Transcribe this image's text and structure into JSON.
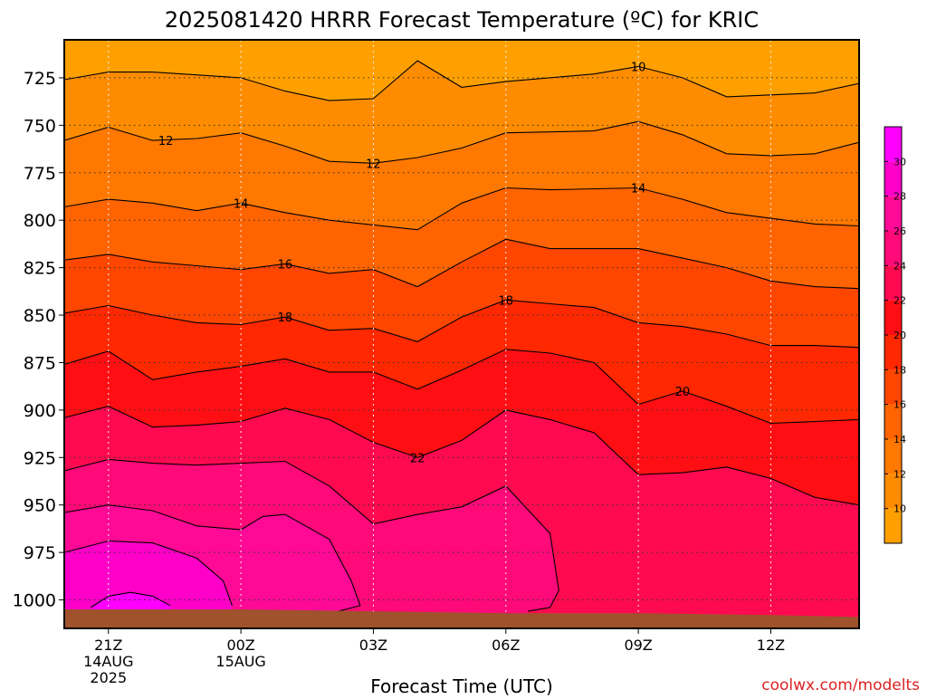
{
  "chart_data": {
    "type": "filled-contour",
    "title": "2025081420 HRRR Forecast Temperature (ºC) for KRIC",
    "xlabel": "Forecast Time (UTC)",
    "ylabel": "",
    "credit": "coolwx.com/modelts",
    "x_unit": "hours after 2025-08-14 20Z",
    "xlim": [
      0,
      18
    ],
    "ylim": [
      705,
      1015
    ],
    "y_scale": "linear-inverted",
    "y_ticks": [
      725,
      750,
      775,
      800,
      825,
      850,
      875,
      900,
      925,
      950,
      975,
      1000
    ],
    "x_ticks": [
      {
        "x": 1,
        "label": "21Z",
        "sub": [
          "14AUG",
          "2025"
        ]
      },
      {
        "x": 4,
        "label": "00Z",
        "sub": [
          "15AUG"
        ]
      },
      {
        "x": 7,
        "label": "03Z",
        "sub": []
      },
      {
        "x": 10,
        "label": "06Z",
        "sub": []
      },
      {
        "x": 13,
        "label": "09Z",
        "sub": []
      },
      {
        "x": 16,
        "label": "12Z",
        "sub": []
      }
    ],
    "grid": true,
    "surface_pressure": [
      [
        0,
        1005
      ],
      [
        4,
        1005
      ],
      [
        7,
        1006
      ],
      [
        10,
        1007
      ],
      [
        13,
        1007
      ],
      [
        16,
        1008
      ],
      [
        18,
        1009
      ]
    ],
    "contours": [
      {
        "level": 10,
        "points": [
          [
            0,
            726
          ],
          [
            1,
            722
          ],
          [
            2,
            722
          ],
          [
            4,
            725
          ],
          [
            5,
            732
          ],
          [
            6,
            737
          ],
          [
            7,
            736
          ],
          [
            8,
            716
          ],
          [
            9,
            730
          ],
          [
            10,
            727
          ],
          [
            12,
            723
          ],
          [
            13,
            719
          ],
          [
            14,
            725
          ],
          [
            15,
            735
          ],
          [
            16,
            734
          ],
          [
            17,
            733
          ],
          [
            18,
            728
          ]
        ]
      },
      {
        "level": 12,
        "points": [
          [
            0,
            758
          ],
          [
            1,
            751
          ],
          [
            2,
            758
          ],
          [
            3,
            757
          ],
          [
            4,
            754
          ],
          [
            5,
            761
          ],
          [
            6,
            769
          ],
          [
            7,
            770
          ],
          [
            8,
            767
          ],
          [
            9,
            762
          ],
          [
            10,
            754
          ],
          [
            12,
            753
          ],
          [
            13,
            748
          ],
          [
            14,
            755
          ],
          [
            15,
            765
          ],
          [
            16,
            766
          ],
          [
            17,
            765
          ],
          [
            18,
            759
          ]
        ]
      },
      {
        "level": 14,
        "points": [
          [
            0,
            793
          ],
          [
            1,
            789
          ],
          [
            2,
            791
          ],
          [
            3,
            795
          ],
          [
            4,
            791
          ],
          [
            5,
            796
          ],
          [
            6,
            800
          ],
          [
            8,
            805
          ],
          [
            9,
            791
          ],
          [
            10,
            783
          ],
          [
            11,
            784
          ],
          [
            13,
            783
          ],
          [
            14,
            789
          ],
          [
            15,
            796
          ],
          [
            16,
            799
          ],
          [
            17,
            802
          ],
          [
            18,
            803
          ]
        ]
      },
      {
        "level": 16,
        "points": [
          [
            0,
            821
          ],
          [
            1,
            818
          ],
          [
            2,
            822
          ],
          [
            3,
            824
          ],
          [
            4,
            826
          ],
          [
            5,
            823
          ],
          [
            6,
            828
          ],
          [
            7,
            826
          ],
          [
            8,
            835
          ],
          [
            9,
            822
          ],
          [
            10,
            810
          ],
          [
            11,
            815
          ],
          [
            13,
            815
          ],
          [
            14,
            820
          ],
          [
            15,
            825
          ],
          [
            16,
            832
          ],
          [
            17,
            835
          ],
          [
            18,
            836
          ]
        ]
      },
      {
        "level": 18,
        "points": [
          [
            0,
            849
          ],
          [
            1,
            845
          ],
          [
            2,
            850
          ],
          [
            3,
            854
          ],
          [
            4,
            855
          ],
          [
            5,
            851
          ],
          [
            6,
            858
          ],
          [
            7,
            857
          ],
          [
            8,
            864
          ],
          [
            9,
            851
          ],
          [
            10,
            842
          ],
          [
            11,
            844
          ],
          [
            12,
            846
          ],
          [
            13,
            854
          ],
          [
            14,
            856
          ],
          [
            15,
            860
          ],
          [
            16,
            866
          ],
          [
            17,
            866
          ],
          [
            18,
            867
          ]
        ]
      },
      {
        "level": 20,
        "points": [
          [
            0,
            876
          ],
          [
            1,
            869
          ],
          [
            2,
            884
          ],
          [
            3,
            880
          ],
          [
            4,
            877
          ],
          [
            5,
            873
          ],
          [
            6,
            880
          ],
          [
            7,
            880
          ],
          [
            8,
            889
          ],
          [
            9,
            879
          ],
          [
            10,
            868
          ],
          [
            11,
            870
          ],
          [
            12,
            875
          ],
          [
            13,
            897
          ],
          [
            14,
            890
          ],
          [
            15,
            898
          ],
          [
            16,
            907
          ],
          [
            17,
            906
          ],
          [
            18,
            905
          ]
        ]
      },
      {
        "level": 22,
        "points": [
          [
            0,
            904
          ],
          [
            1,
            898
          ],
          [
            2,
            909
          ],
          [
            3,
            908
          ],
          [
            4,
            906
          ],
          [
            5,
            899
          ],
          [
            6,
            905
          ],
          [
            7,
            917
          ],
          [
            8,
            925
          ],
          [
            9,
            916
          ],
          [
            10,
            900
          ],
          [
            11,
            905
          ],
          [
            12,
            912
          ],
          [
            13,
            934
          ],
          [
            14,
            933
          ],
          [
            15,
            930
          ],
          [
            16,
            936
          ],
          [
            17,
            946
          ],
          [
            18,
            950
          ]
        ]
      },
      {
        "level": 24,
        "points": [
          [
            0,
            932
          ],
          [
            1,
            926
          ],
          [
            2,
            928
          ],
          [
            3,
            929
          ],
          [
            4,
            928
          ],
          [
            5,
            927
          ],
          [
            6,
            940
          ],
          [
            7,
            960
          ],
          [
            8,
            955
          ],
          [
            9,
            951
          ],
          [
            10,
            940
          ],
          [
            11,
            965
          ],
          [
            11.2,
            995
          ],
          [
            11,
            1004
          ],
          [
            10.5,
            1006
          ]
        ]
      },
      {
        "level": 26,
        "points": [
          [
            0,
            954
          ],
          [
            1,
            950
          ],
          [
            2,
            953
          ],
          [
            3,
            961
          ],
          [
            4,
            963
          ],
          [
            4.5,
            956
          ],
          [
            5,
            955
          ],
          [
            6,
            968
          ],
          [
            6.5,
            990
          ],
          [
            6.7,
            1003
          ],
          [
            6.2,
            1006
          ]
        ]
      },
      {
        "level": 28,
        "points": [
          [
            0,
            975
          ],
          [
            1,
            969
          ],
          [
            2,
            970
          ],
          [
            3,
            978
          ],
          [
            3.6,
            990
          ],
          [
            3.8,
            1003
          ]
        ]
      },
      {
        "level": 30,
        "points": [
          [
            0.6,
            1004
          ],
          [
            1,
            998
          ],
          [
            1.5,
            996
          ],
          [
            2,
            998
          ],
          [
            2.4,
            1003
          ]
        ]
      }
    ],
    "colorbar": {
      "labels": [
        10,
        12,
        14,
        16,
        18,
        20,
        22,
        24,
        26,
        28,
        30
      ],
      "bins": [
        {
          "lo": 8,
          "hi": 10,
          "color": "#ffa000"
        },
        {
          "lo": 10,
          "hi": 12,
          "color": "#ff8c00"
        },
        {
          "lo": 12,
          "hi": 14,
          "color": "#ff7800"
        },
        {
          "lo": 14,
          "hi": 16,
          "color": "#ff6400"
        },
        {
          "lo": 16,
          "hi": 18,
          "color": "#ff4600"
        },
        {
          "lo": 18,
          "hi": 20,
          "color": "#ff2800"
        },
        {
          "lo": 20,
          "hi": 22,
          "color": "#ff0f14"
        },
        {
          "lo": 22,
          "hi": 24,
          "color": "#ff0a50"
        },
        {
          "lo": 24,
          "hi": 26,
          "color": "#ff0a78"
        },
        {
          "lo": 26,
          "hi": 28,
          "color": "#ff0a96"
        },
        {
          "lo": 28,
          "hi": 30,
          "color": "#ff00c8"
        },
        {
          "lo": 30,
          "hi": 32,
          "color": "#ff00ff"
        }
      ]
    },
    "contour_labels": [
      {
        "text": "10",
        "x": 13,
        "y": 719
      },
      {
        "text": "12",
        "x": 2.3,
        "y": 758
      },
      {
        "text": "12",
        "x": 7,
        "y": 770
      },
      {
        "text": "14",
        "x": 4,
        "y": 791
      },
      {
        "text": "14",
        "x": 13,
        "y": 783
      },
      {
        "text": "16",
        "x": 5,
        "y": 823
      },
      {
        "text": "18",
        "x": 5,
        "y": 851
      },
      {
        "text": "18",
        "x": 10,
        "y": 842
      },
      {
        "text": "20",
        "x": 14,
        "y": 890
      },
      {
        "text": "22",
        "x": 8,
        "y": 925
      }
    ],
    "ground_color": "#a0522d",
    "outside_color": "#ffa000"
  }
}
